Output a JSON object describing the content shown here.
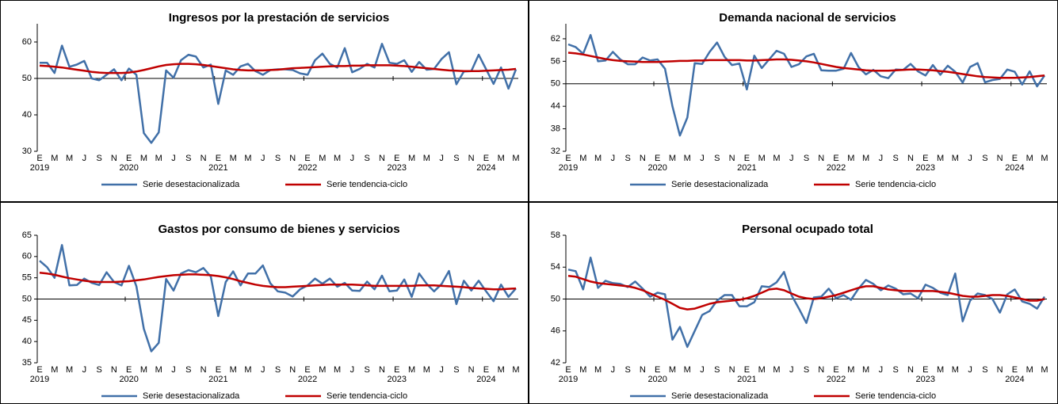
{
  "chart_data": [
    {
      "type": "line",
      "title": "Ingresos por la prestación de servicios",
      "categories": [
        "E",
        null,
        "M",
        null,
        "M",
        null,
        "J",
        null,
        "S",
        null,
        "N",
        null,
        "E",
        null,
        "M",
        null,
        "M",
        null,
        "J",
        null,
        "S",
        null,
        "N",
        null,
        "E",
        null,
        "M",
        null,
        "M",
        null,
        "J",
        null,
        "S",
        null,
        "N",
        null,
        "E",
        null,
        "M",
        null,
        "M",
        null,
        "J",
        null,
        "S",
        null,
        "N",
        null,
        "E",
        null,
        "M",
        null,
        "M",
        null,
        "J",
        null,
        "S",
        null,
        "N",
        null,
        "E",
        null,
        "M",
        null,
        "M"
      ],
      "years": [
        "2019",
        null,
        null,
        null,
        null,
        null,
        null,
        null,
        null,
        null,
        null,
        null,
        "2020",
        null,
        null,
        null,
        null,
        null,
        null,
        null,
        null,
        null,
        null,
        null,
        "2021",
        null,
        null,
        null,
        null,
        null,
        null,
        null,
        null,
        null,
        null,
        null,
        "2022",
        null,
        null,
        null,
        null,
        null,
        null,
        null,
        null,
        null,
        null,
        null,
        "2023",
        null,
        null,
        null,
        null,
        null,
        null,
        null,
        null,
        null,
        null,
        null,
        "2024",
        null,
        null,
        null,
        null
      ],
      "series": [
        {
          "name": "Serie desestacionalizada",
          "color": "#4170a8",
          "values": [
            54.3,
            54.3,
            51.5,
            59,
            53.2,
            53.8,
            54.8,
            50,
            49.5,
            51,
            52.5,
            49.5,
            52.7,
            51,
            35,
            32.3,
            35.2,
            52.2,
            50.2,
            55,
            56.5,
            56,
            53,
            53.8,
            43,
            52.2,
            51,
            53.3,
            54,
            52,
            51,
            52.3,
            52.5,
            52.5,
            52.3,
            51.4,
            51,
            55,
            56.8,
            54,
            53,
            58.3,
            51.7,
            52.6,
            54,
            53,
            59.5,
            54.3,
            54,
            55,
            51.8,
            54.5,
            52.4,
            52.6,
            55.3,
            57.2,
            48.4,
            51.9,
            52,
            56.5,
            52.5,
            48.5,
            53,
            47.2,
            52.5
          ]
        },
        {
          "name": "Serie tendencia-ciclo",
          "color": "#c00000",
          "values": [
            53.5,
            53.4,
            53.2,
            53.0,
            52.7,
            52.4,
            52.1,
            51.8,
            51.6,
            51.5,
            51.5,
            51.5,
            51.6,
            51.9,
            52.3,
            52.8,
            53.3,
            53.7,
            53.9,
            54.0,
            54.0,
            53.9,
            53.7,
            53.4,
            53.1,
            52.8,
            52.5,
            52.3,
            52.2,
            52.2,
            52.2,
            52.3,
            52.4,
            52.6,
            52.8,
            52.9,
            53.0,
            53.1,
            53.2,
            53.3,
            53.4,
            53.4,
            53.5,
            53.5,
            53.6,
            53.6,
            53.6,
            53.6,
            53.5,
            53.4,
            53.2,
            53.0,
            52.8,
            52.6,
            52.4,
            52.2,
            52.1,
            52.0,
            52.0,
            52.0,
            52.1,
            52.2,
            52.3,
            52.4,
            52.6
          ]
        }
      ],
      "ylim": [
        30,
        65
      ],
      "yticks": [
        30,
        40,
        50,
        60
      ],
      "baseline": 50,
      "legend": "bottom"
    },
    {
      "type": "line",
      "title": "Demanda nacional de servicios",
      "categories": [
        "E",
        null,
        "M",
        null,
        "M",
        null,
        "J",
        null,
        "S",
        null,
        "N",
        null,
        "E",
        null,
        "M",
        null,
        "M",
        null,
        "J",
        null,
        "S",
        null,
        "N",
        null,
        "E",
        null,
        "M",
        null,
        "M",
        null,
        "J",
        null,
        "S",
        null,
        "N",
        null,
        "E",
        null,
        "M",
        null,
        "M",
        null,
        "J",
        null,
        "S",
        null,
        "N",
        null,
        "E",
        null,
        "M",
        null,
        "M",
        null,
        "J",
        null,
        "S",
        null,
        "N",
        null,
        "E",
        null,
        "M",
        null,
        "M"
      ],
      "years": [
        "2019",
        null,
        null,
        null,
        null,
        null,
        null,
        null,
        null,
        null,
        null,
        null,
        "2020",
        null,
        null,
        null,
        null,
        null,
        null,
        null,
        null,
        null,
        null,
        null,
        "2021",
        null,
        null,
        null,
        null,
        null,
        null,
        null,
        null,
        null,
        null,
        null,
        "2022",
        null,
        null,
        null,
        null,
        null,
        null,
        null,
        null,
        null,
        null,
        null,
        "2023",
        null,
        null,
        null,
        null,
        null,
        null,
        null,
        null,
        null,
        null,
        null,
        "2024",
        null,
        null,
        null,
        null
      ],
      "series": [
        {
          "name": "Serie desestacionalizada",
          "color": "#4170a8",
          "values": [
            60.5,
            59.8,
            58,
            63,
            56,
            56.2,
            58.5,
            56.5,
            55.2,
            55.2,
            57,
            56.2,
            56.5,
            54,
            44,
            36.2,
            41,
            55.5,
            55.3,
            58.5,
            61,
            57.2,
            55,
            55.4,
            48.5,
            57.5,
            54.2,
            56.5,
            58.8,
            58,
            54.5,
            55.2,
            57.3,
            58,
            53.6,
            53.5,
            53.5,
            54,
            58.2,
            54.5,
            52.5,
            53.7,
            52,
            51.5,
            53.8,
            53.7,
            55.3,
            53.3,
            52.2,
            55,
            52.4,
            54.8,
            53.2,
            50.3,
            54.5,
            55.5,
            50.4,
            51,
            51.3,
            53.8,
            53.2,
            49.8,
            53.3,
            49.3,
            52.2
          ]
        },
        {
          "name": "Serie tendencia-ciclo",
          "color": "#c00000",
          "values": [
            58.3,
            58.1,
            57.8,
            57.4,
            57.0,
            56.6,
            56.3,
            56.1,
            56.0,
            55.9,
            55.8,
            55.8,
            55.8,
            55.9,
            56.0,
            56.1,
            56.1,
            56.2,
            56.2,
            56.3,
            56.3,
            56.3,
            56.3,
            56.3,
            56.2,
            56.2,
            56.3,
            56.4,
            56.5,
            56.5,
            56.4,
            56.2,
            56.0,
            55.7,
            55.3,
            54.9,
            54.5,
            54.2,
            54.0,
            53.8,
            53.6,
            53.5,
            53.5,
            53.5,
            53.6,
            53.7,
            53.8,
            53.8,
            53.7,
            53.6,
            53.4,
            53.2,
            52.9,
            52.6,
            52.3,
            52.0,
            51.8,
            51.7,
            51.6,
            51.6,
            51.6,
            51.7,
            51.8,
            52.0,
            52.2
          ]
        }
      ],
      "ylim": [
        32,
        66
      ],
      "yticks": [
        32,
        38,
        44,
        50,
        56,
        62
      ],
      "baseline": 50,
      "legend": "bottom"
    },
    {
      "type": "line",
      "title": "Gastos por consumo de bienes y servicios",
      "categories": [
        "E",
        null,
        "M",
        null,
        "M",
        null,
        "J",
        null,
        "S",
        null,
        "N",
        null,
        "E",
        null,
        "M",
        null,
        "M",
        null,
        "J",
        null,
        "S",
        null,
        "N",
        null,
        "E",
        null,
        "M",
        null,
        "M",
        null,
        "J",
        null,
        "S",
        null,
        "N",
        null,
        "E",
        null,
        "M",
        null,
        "M",
        null,
        "J",
        null,
        "S",
        null,
        "N",
        null,
        "E",
        null,
        "M",
        null,
        "M",
        null,
        "J",
        null,
        "S",
        null,
        "N",
        null,
        "E",
        null,
        "M",
        null,
        "M"
      ],
      "years": [
        "2019",
        null,
        null,
        null,
        null,
        null,
        null,
        null,
        null,
        null,
        null,
        null,
        "2020",
        null,
        null,
        null,
        null,
        null,
        null,
        null,
        null,
        null,
        null,
        null,
        "2021",
        null,
        null,
        null,
        null,
        null,
        null,
        null,
        null,
        null,
        null,
        null,
        "2022",
        null,
        null,
        null,
        null,
        null,
        null,
        null,
        null,
        null,
        null,
        null,
        "2023",
        null,
        null,
        null,
        null,
        null,
        null,
        null,
        null,
        null,
        null,
        null,
        "2024",
        null,
        null,
        null,
        null
      ],
      "series": [
        {
          "name": "Serie desestacionalizada",
          "color": "#4170a8",
          "values": [
            59,
            57.5,
            55,
            62.7,
            53.2,
            53.3,
            54.8,
            53.8,
            53.3,
            56.3,
            54,
            53.2,
            57.8,
            53,
            43,
            37.7,
            39.7,
            54.7,
            52,
            56,
            56.8,
            56.3,
            57.3,
            55.3,
            46,
            54,
            56.5,
            53.2,
            56,
            56,
            57.9,
            53.7,
            51.8,
            51.5,
            50.6,
            52.3,
            53.2,
            54.8,
            53.6,
            54.8,
            52.9,
            53.8,
            52,
            51.9,
            54.1,
            52.3,
            55.5,
            51.8,
            52,
            54.6,
            50.5,
            56,
            53.6,
            51.8,
            53.5,
            56.6,
            48.8,
            54.3,
            52,
            54.3,
            51.8,
            49.5,
            53.4,
            50.5,
            52.5
          ]
        },
        {
          "name": "Serie tendencia-ciclo",
          "color": "#c00000",
          "values": [
            56.2,
            56.0,
            55.7,
            55.3,
            54.9,
            54.6,
            54.3,
            54.1,
            54.0,
            54.0,
            54.0,
            54.1,
            54.2,
            54.4,
            54.6,
            54.9,
            55.2,
            55.4,
            55.6,
            55.7,
            55.8,
            55.8,
            55.7,
            55.6,
            55.4,
            55.1,
            54.7,
            54.2,
            53.8,
            53.4,
            53.1,
            52.9,
            52.8,
            52.8,
            52.9,
            53.0,
            53.1,
            53.2,
            53.3,
            53.4,
            53.4,
            53.4,
            53.4,
            53.3,
            53.2,
            53.1,
            53.1,
            53.1,
            53.1,
            53.1,
            53.1,
            53.2,
            53.2,
            53.2,
            53.1,
            53.0,
            52.9,
            52.8,
            52.6,
            52.5,
            52.4,
            52.3,
            52.3,
            52.4,
            52.5
          ]
        }
      ],
      "ylim": [
        35,
        65
      ],
      "yticks": [
        35,
        40,
        45,
        50,
        55,
        60,
        65
      ],
      "baseline": 50,
      "legend": "bottom"
    },
    {
      "type": "line",
      "title": "Personal ocupado total",
      "categories": [
        "E",
        null,
        "M",
        null,
        "M",
        null,
        "J",
        null,
        "S",
        null,
        "N",
        null,
        "E",
        null,
        "M",
        null,
        "M",
        null,
        "J",
        null,
        "S",
        null,
        "N",
        null,
        "E",
        null,
        "M",
        null,
        "M",
        null,
        "J",
        null,
        "S",
        null,
        "N",
        null,
        "E",
        null,
        "M",
        null,
        "M",
        null,
        "J",
        null,
        "S",
        null,
        "N",
        null,
        "E",
        null,
        "M",
        null,
        "M",
        null,
        "J",
        null,
        "S",
        null,
        "N",
        null,
        "E",
        null,
        "M",
        null,
        "M"
      ],
      "years": [
        "2019",
        null,
        null,
        null,
        null,
        null,
        null,
        null,
        null,
        null,
        null,
        null,
        "2020",
        null,
        null,
        null,
        null,
        null,
        null,
        null,
        null,
        null,
        null,
        null,
        "2021",
        null,
        null,
        null,
        null,
        null,
        null,
        null,
        null,
        null,
        null,
        null,
        "2022",
        null,
        null,
        null,
        null,
        null,
        null,
        null,
        null,
        null,
        null,
        null,
        "2023",
        null,
        null,
        null,
        null,
        null,
        null,
        null,
        null,
        null,
        null,
        null,
        "2024",
        null,
        null,
        null,
        null
      ],
      "series": [
        {
          "name": "Serie desestacionalizada",
          "color": "#4170a8",
          "values": [
            53.7,
            53.5,
            51.2,
            55.2,
            51.4,
            52.3,
            52,
            51.9,
            51.5,
            52.2,
            51.3,
            50.3,
            50.8,
            50.6,
            44.9,
            46.5,
            44,
            46,
            48,
            48.5,
            49.8,
            50.5,
            50.5,
            49.1,
            49.1,
            49.6,
            51.6,
            51.5,
            52.1,
            53.4,
            50.5,
            48.8,
            47,
            50.2,
            50.3,
            51.3,
            50.1,
            50.5,
            49.9,
            51.3,
            52.4,
            51.9,
            51.1,
            51.7,
            51.3,
            50.6,
            50.7,
            50.1,
            51.8,
            51.4,
            50.8,
            50.5,
            53.2,
            47.2,
            49.8,
            50.7,
            50.5,
            50,
            48.3,
            50.6,
            51.2,
            49.7,
            49.4,
            48.8,
            50.3
          ]
        },
        {
          "name": "Serie tendencia-ciclo",
          "color": "#c00000",
          "values": [
            52.9,
            52.8,
            52.5,
            52.2,
            52.0,
            51.9,
            51.8,
            51.7,
            51.6,
            51.4,
            51.1,
            50.7,
            50.3,
            49.9,
            49.4,
            48.9,
            48.7,
            48.8,
            49.1,
            49.4,
            49.6,
            49.7,
            49.8,
            49.9,
            50.1,
            50.4,
            50.8,
            51.2,
            51.3,
            51.1,
            50.7,
            50.3,
            50.1,
            50.0,
            50.1,
            50.3,
            50.5,
            50.8,
            51.1,
            51.4,
            51.6,
            51.6,
            51.4,
            51.2,
            51.1,
            51.0,
            51.0,
            51.0,
            51.0,
            51.0,
            50.9,
            50.8,
            50.6,
            50.4,
            50.3,
            50.3,
            50.4,
            50.5,
            50.5,
            50.4,
            50.2,
            50.0,
            49.8,
            49.8,
            50.0
          ]
        }
      ],
      "ylim": [
        42,
        58
      ],
      "yticks": [
        42,
        46,
        50,
        54,
        58
      ],
      "baseline": 50,
      "legend": "bottom"
    }
  ]
}
